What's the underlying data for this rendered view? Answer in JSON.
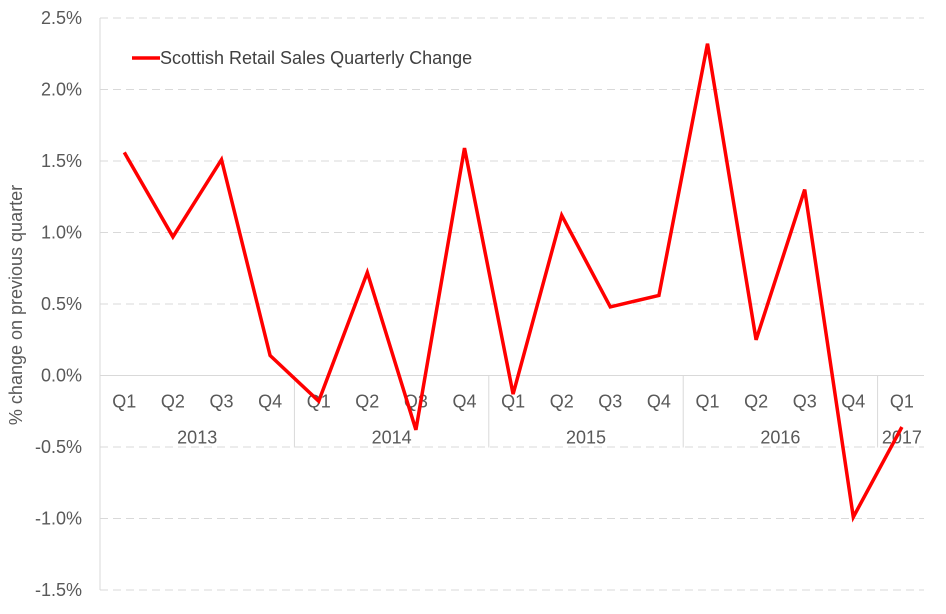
{
  "chart_data": {
    "type": "line",
    "title": "",
    "xlabel": "",
    "ylabel": "% change on previous quarter",
    "ylim": [
      -1.5,
      2.5
    ],
    "ytick_step": 0.5,
    "y_format": "percent_1dp",
    "grid": true,
    "legend_position": "top-left",
    "colors": {
      "series": "#ff0000",
      "grid": "#d9d9d9",
      "text": "#595959"
    },
    "categories": [
      "Q1",
      "Q2",
      "Q3",
      "Q4",
      "Q1",
      "Q2",
      "Q3",
      "Q4",
      "Q1",
      "Q2",
      "Q3",
      "Q4",
      "Q1",
      "Q2",
      "Q3",
      "Q4",
      "Q1"
    ],
    "groups": [
      {
        "label": "2013",
        "count": 4
      },
      {
        "label": "2014",
        "count": 4
      },
      {
        "label": "2015",
        "count": 4
      },
      {
        "label": "2016",
        "count": 4
      },
      {
        "label": "2017",
        "count": 1
      }
    ],
    "series": [
      {
        "name": "Scottish Retail Sales Quarterly Change",
        "values": [
          1.56,
          0.97,
          1.51,
          0.14,
          -0.18,
          0.72,
          -0.38,
          1.59,
          -0.13,
          1.12,
          0.48,
          0.56,
          2.32,
          0.25,
          1.3,
          -0.99,
          -0.36
        ]
      }
    ]
  }
}
